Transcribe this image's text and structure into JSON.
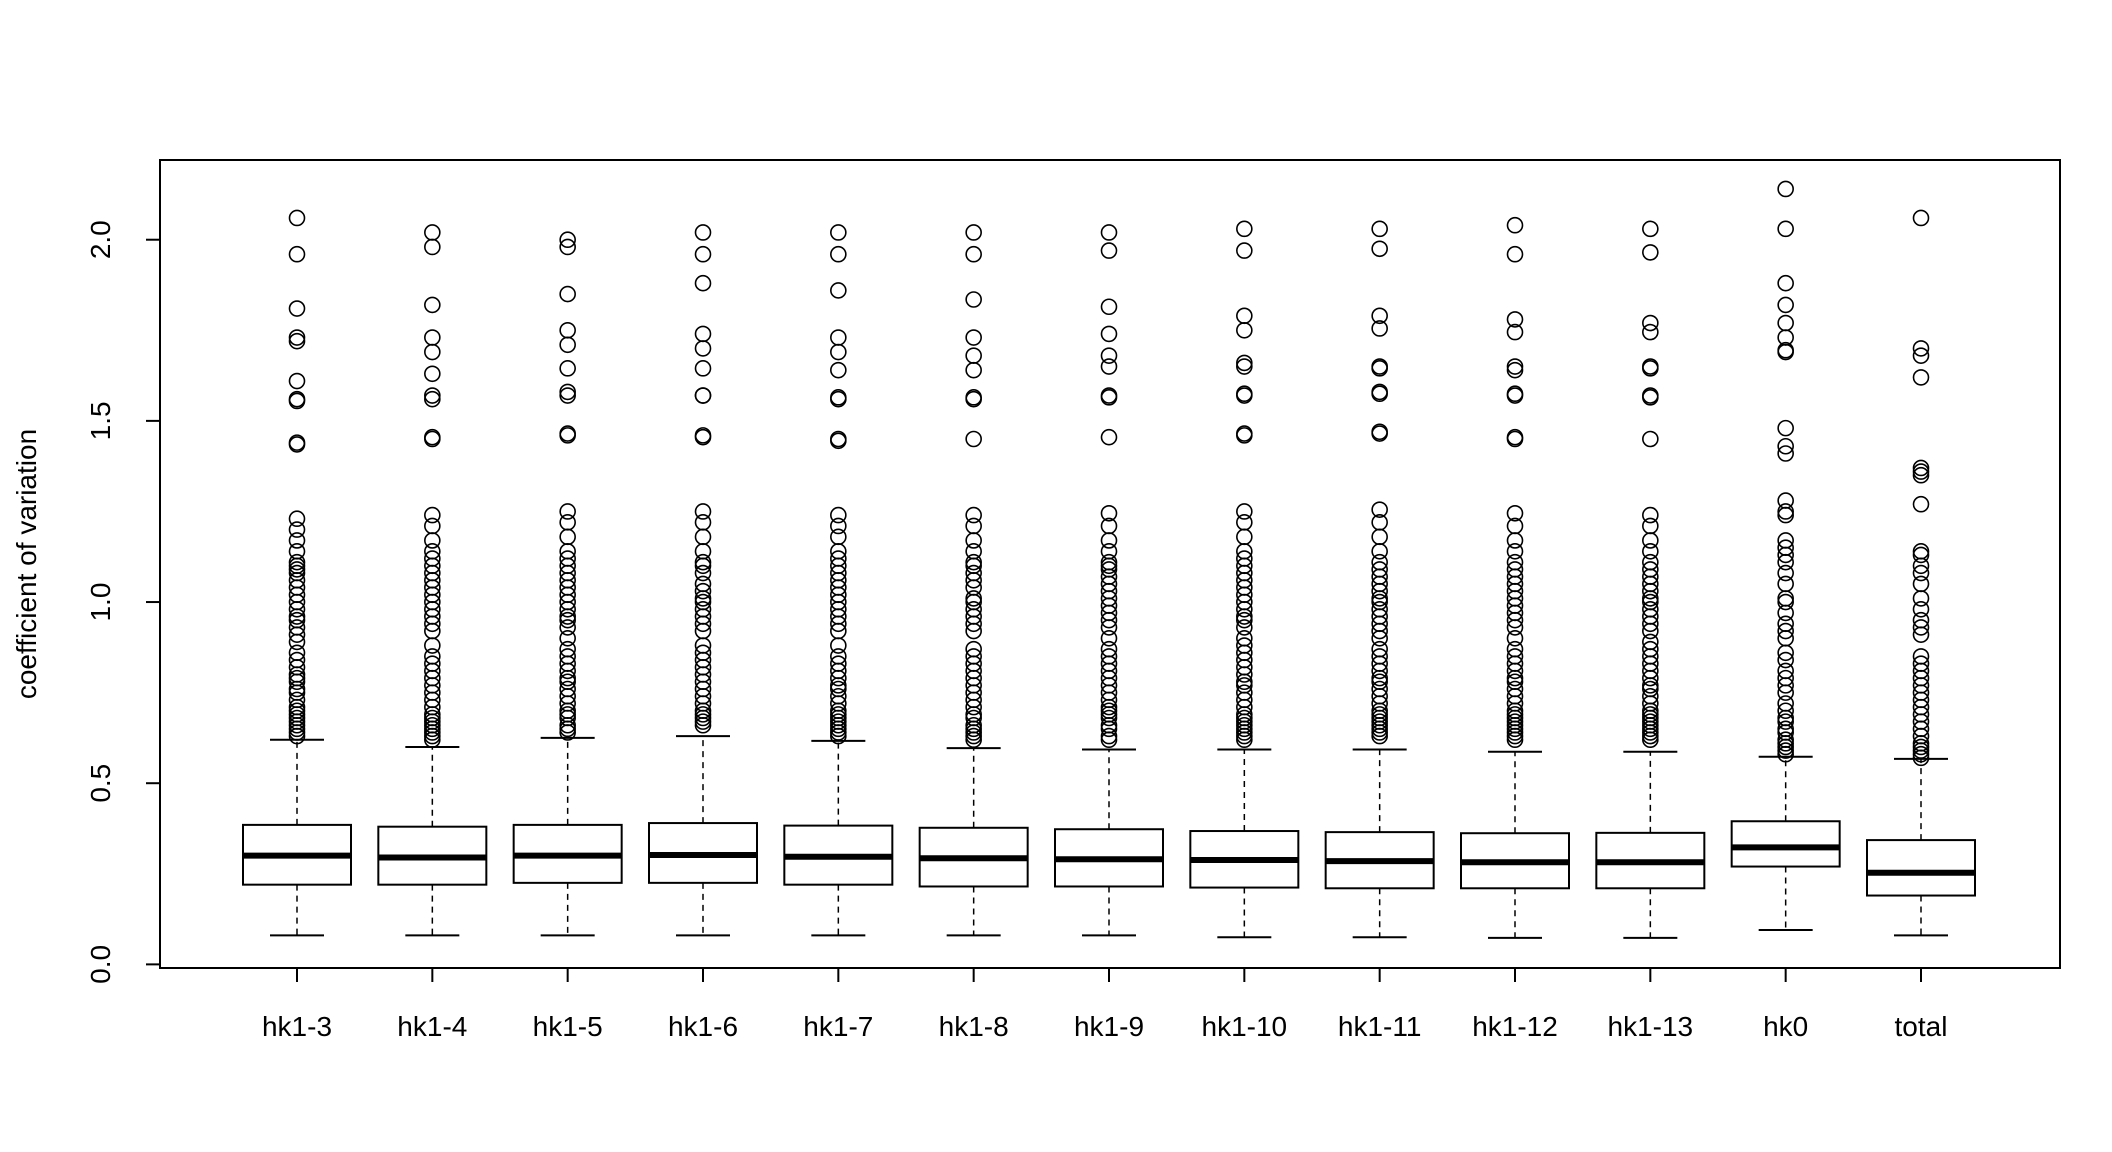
{
  "chart_data": {
    "type": "box",
    "title": "",
    "xlabel": "",
    "ylabel": "coefficient of variation",
    "ylim": [
      -0.01,
      2.22
    ],
    "y_ticks": [
      0.0,
      0.5,
      1.0,
      1.5,
      2.0
    ],
    "y_tick_labels": [
      "0.0",
      "0.5",
      "1.0",
      "1.5",
      "2.0"
    ],
    "grid": false,
    "categories": [
      "hk1-3",
      "hk1-4",
      "hk1-5",
      "hk1-6",
      "hk1-7",
      "hk1-8",
      "hk1-9",
      "hk1-10",
      "hk1-11",
      "hk1-12",
      "hk1-13",
      "hk0",
      "total"
    ],
    "boxes": [
      {
        "min": 0.08,
        "q1": 0.22,
        "median": 0.3,
        "q3": 0.385,
        "max": 0.62,
        "outliers": [
          2.06,
          1.96,
          1.81,
          1.73,
          1.72,
          1.61,
          1.56,
          1.555,
          1.44,
          1.435,
          1.23,
          1.2,
          1.17,
          1.14,
          1.11,
          1.1,
          1.09,
          1.08,
          1.06,
          1.04,
          1.02,
          1.0,
          0.98,
          0.96,
          0.95,
          0.93,
          0.91,
          0.89,
          0.86,
          0.84,
          0.82,
          0.8,
          0.79,
          0.78,
          0.76,
          0.75,
          0.73,
          0.71,
          0.7,
          0.69,
          0.68,
          0.67,
          0.66,
          0.65,
          0.64,
          0.63
        ]
      },
      {
        "min": 0.08,
        "q1": 0.22,
        "median": 0.295,
        "q3": 0.38,
        "max": 0.6,
        "outliers": [
          2.02,
          1.98,
          1.82,
          1.73,
          1.69,
          1.63,
          1.57,
          1.56,
          1.455,
          1.45,
          1.24,
          1.21,
          1.17,
          1.14,
          1.12,
          1.1,
          1.08,
          1.06,
          1.04,
          1.02,
          1.0,
          0.98,
          0.96,
          0.94,
          0.92,
          0.88,
          0.85,
          0.83,
          0.81,
          0.79,
          0.77,
          0.75,
          0.73,
          0.71,
          0.69,
          0.68,
          0.67,
          0.66,
          0.65,
          0.64,
          0.63,
          0.62
        ]
      },
      {
        "min": 0.08,
        "q1": 0.225,
        "median": 0.3,
        "q3": 0.385,
        "max": 0.625,
        "outliers": [
          2.0,
          1.98,
          1.85,
          1.75,
          1.71,
          1.645,
          1.58,
          1.57,
          1.465,
          1.46,
          1.25,
          1.22,
          1.18,
          1.14,
          1.12,
          1.1,
          1.08,
          1.06,
          1.04,
          1.02,
          1.0,
          0.98,
          0.96,
          0.95,
          0.93,
          0.9,
          0.87,
          0.85,
          0.83,
          0.81,
          0.79,
          0.78,
          0.76,
          0.74,
          0.72,
          0.7,
          0.69,
          0.68,
          0.66,
          0.65,
          0.64
        ]
      },
      {
        "min": 0.08,
        "q1": 0.225,
        "median": 0.302,
        "q3": 0.39,
        "max": 0.63,
        "outliers": [
          2.02,
          1.96,
          1.88,
          1.74,
          1.7,
          1.645,
          1.57,
          1.57,
          1.46,
          1.455,
          1.25,
          1.22,
          1.18,
          1.14,
          1.11,
          1.1,
          1.08,
          1.05,
          1.03,
          1.01,
          1.0,
          0.98,
          0.96,
          0.94,
          0.92,
          0.88,
          0.86,
          0.84,
          0.82,
          0.8,
          0.78,
          0.76,
          0.74,
          0.72,
          0.7,
          0.69,
          0.68,
          0.67,
          0.66
        ]
      },
      {
        "min": 0.08,
        "q1": 0.22,
        "median": 0.297,
        "q3": 0.383,
        "max": 0.617,
        "outliers": [
          2.02,
          1.96,
          1.86,
          1.73,
          1.69,
          1.64,
          1.565,
          1.56,
          1.45,
          1.445,
          1.24,
          1.21,
          1.18,
          1.14,
          1.12,
          1.1,
          1.08,
          1.06,
          1.04,
          1.02,
          1.0,
          0.98,
          0.96,
          0.94,
          0.92,
          0.88,
          0.85,
          0.83,
          0.81,
          0.79,
          0.77,
          0.76,
          0.74,
          0.72,
          0.7,
          0.69,
          0.68,
          0.67,
          0.66,
          0.65,
          0.64,
          0.63
        ]
      },
      {
        "min": 0.08,
        "q1": 0.215,
        "median": 0.293,
        "q3": 0.377,
        "max": 0.597,
        "outliers": [
          2.02,
          1.96,
          1.835,
          1.73,
          1.68,
          1.64,
          1.565,
          1.56,
          1.45,
          1.24,
          1.21,
          1.17,
          1.14,
          1.11,
          1.1,
          1.08,
          1.06,
          1.04,
          1.01,
          1.0,
          0.98,
          0.96,
          0.94,
          0.92,
          0.87,
          0.85,
          0.83,
          0.81,
          0.79,
          0.77,
          0.75,
          0.73,
          0.71,
          0.69,
          0.68,
          0.66,
          0.65,
          0.64,
          0.63,
          0.62
        ]
      },
      {
        "min": 0.08,
        "q1": 0.215,
        "median": 0.29,
        "q3": 0.373,
        "max": 0.593,
        "outliers": [
          2.02,
          1.97,
          1.815,
          1.74,
          1.68,
          1.65,
          1.57,
          1.565,
          1.455,
          1.245,
          1.21,
          1.17,
          1.14,
          1.11,
          1.1,
          1.09,
          1.07,
          1.05,
          1.03,
          1.01,
          0.99,
          0.97,
          0.95,
          0.93,
          0.9,
          0.87,
          0.85,
          0.83,
          0.81,
          0.79,
          0.77,
          0.75,
          0.73,
          0.71,
          0.7,
          0.69,
          0.68,
          0.66,
          0.65,
          0.63,
          0.62
        ]
      },
      {
        "min": 0.075,
        "q1": 0.212,
        "median": 0.288,
        "q3": 0.368,
        "max": 0.593,
        "outliers": [
          2.03,
          1.97,
          1.79,
          1.75,
          1.66,
          1.65,
          1.575,
          1.57,
          1.465,
          1.46,
          1.25,
          1.22,
          1.18,
          1.14,
          1.12,
          1.1,
          1.08,
          1.06,
          1.04,
          1.02,
          1.0,
          0.98,
          0.96,
          0.95,
          0.93,
          0.9,
          0.88,
          0.86,
          0.84,
          0.82,
          0.8,
          0.78,
          0.77,
          0.75,
          0.73,
          0.71,
          0.69,
          0.68,
          0.67,
          0.66,
          0.65,
          0.64,
          0.63,
          0.62
        ]
      },
      {
        "min": 0.075,
        "q1": 0.21,
        "median": 0.285,
        "q3": 0.365,
        "max": 0.593,
        "outliers": [
          2.03,
          1.975,
          1.79,
          1.755,
          1.65,
          1.645,
          1.58,
          1.575,
          1.47,
          1.465,
          1.255,
          1.22,
          1.18,
          1.14,
          1.11,
          1.09,
          1.07,
          1.05,
          1.03,
          1.01,
          1.0,
          0.98,
          0.96,
          0.94,
          0.92,
          0.9,
          0.87,
          0.85,
          0.83,
          0.81,
          0.79,
          0.78,
          0.76,
          0.74,
          0.72,
          0.7,
          0.69,
          0.68,
          0.67,
          0.66,
          0.65,
          0.64,
          0.63
        ]
      },
      {
        "min": 0.073,
        "q1": 0.21,
        "median": 0.282,
        "q3": 0.362,
        "max": 0.587,
        "outliers": [
          2.04,
          1.96,
          1.78,
          1.745,
          1.65,
          1.64,
          1.575,
          1.57,
          1.455,
          1.45,
          1.245,
          1.21,
          1.17,
          1.14,
          1.11,
          1.09,
          1.07,
          1.05,
          1.03,
          1.01,
          0.99,
          0.97,
          0.95,
          0.93,
          0.9,
          0.87,
          0.85,
          0.83,
          0.81,
          0.79,
          0.78,
          0.76,
          0.74,
          0.72,
          0.7,
          0.69,
          0.68,
          0.67,
          0.66,
          0.65,
          0.64,
          0.63,
          0.62
        ]
      },
      {
        "min": 0.073,
        "q1": 0.21,
        "median": 0.282,
        "q3": 0.363,
        "max": 0.587,
        "outliers": [
          2.03,
          1.965,
          1.77,
          1.745,
          1.65,
          1.645,
          1.57,
          1.565,
          1.45,
          1.24,
          1.21,
          1.17,
          1.14,
          1.11,
          1.09,
          1.07,
          1.05,
          1.03,
          1.01,
          1.0,
          0.98,
          0.96,
          0.94,
          0.92,
          0.89,
          0.87,
          0.85,
          0.83,
          0.81,
          0.79,
          0.77,
          0.76,
          0.74,
          0.72,
          0.7,
          0.69,
          0.68,
          0.67,
          0.66,
          0.65,
          0.64,
          0.63,
          0.62
        ]
      },
      {
        "min": 0.095,
        "q1": 0.27,
        "median": 0.323,
        "q3": 0.395,
        "max": 0.573,
        "outliers": [
          2.14,
          2.03,
          1.88,
          1.82,
          1.77,
          1.73,
          1.695,
          1.69,
          1.48,
          1.43,
          1.41,
          1.28,
          1.25,
          1.24,
          1.17,
          1.15,
          1.13,
          1.11,
          1.08,
          1.05,
          1.01,
          1.0,
          0.97,
          0.94,
          0.92,
          0.9,
          0.86,
          0.84,
          0.81,
          0.79,
          0.77,
          0.75,
          0.72,
          0.7,
          0.68,
          0.67,
          0.65,
          0.64,
          0.62,
          0.61,
          0.6,
          0.59,
          0.58
        ]
      },
      {
        "min": 0.08,
        "q1": 0.19,
        "median": 0.253,
        "q3": 0.343,
        "max": 0.567,
        "outliers": [
          2.06,
          1.7,
          1.68,
          1.62,
          1.37,
          1.36,
          1.35,
          1.27,
          1.14,
          1.13,
          1.1,
          1.08,
          1.05,
          1.01,
          0.98,
          0.95,
          0.93,
          0.91,
          0.85,
          0.83,
          0.81,
          0.79,
          0.77,
          0.75,
          0.73,
          0.71,
          0.69,
          0.67,
          0.65,
          0.63,
          0.61,
          0.6,
          0.59,
          0.58,
          0.57
        ]
      }
    ]
  }
}
